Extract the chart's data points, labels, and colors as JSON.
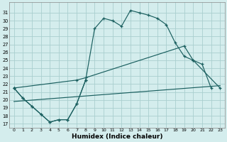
{
  "xlabel": "Humidex (Indice chaleur)",
  "background_color": "#d4eded",
  "grid_color": "#aacfcf",
  "line_color": "#1a5f5f",
  "xlim": [
    -0.5,
    23.5
  ],
  "ylim": [
    16.5,
    32.3
  ],
  "xticks": [
    0,
    1,
    2,
    3,
    4,
    5,
    6,
    7,
    8,
    9,
    10,
    11,
    12,
    13,
    14,
    15,
    16,
    17,
    18,
    19,
    20,
    21,
    22,
    23
  ],
  "yticks": [
    17,
    18,
    19,
    20,
    21,
    22,
    23,
    24,
    25,
    26,
    27,
    28,
    29,
    30,
    31
  ],
  "curve1_x": [
    0,
    1,
    2,
    3,
    4,
    5,
    6,
    7,
    8,
    9,
    10,
    11,
    12,
    13,
    14,
    15,
    16,
    17,
    18,
    19,
    20,
    21,
    22
  ],
  "curve1_y": [
    21.5,
    20.2,
    19.2,
    18.2,
    17.2,
    17.5,
    17.5,
    19.5,
    22.5,
    29.0,
    30.3,
    30.0,
    29.3,
    31.3,
    31.0,
    30.7,
    30.3,
    29.5,
    27.2,
    25.5,
    25.0,
    24.5,
    21.5
  ],
  "curve2_x": [
    0,
    1,
    2,
    3,
    4,
    5,
    6,
    7,
    8
  ],
  "curve2_y": [
    21.5,
    20.2,
    19.2,
    18.2,
    17.2,
    17.5,
    17.5,
    19.5,
    22.5
  ],
  "curve3_x": [
    0,
    7,
    8,
    19,
    20,
    23
  ],
  "curve3_y": [
    21.5,
    22.5,
    22.8,
    26.8,
    25.0,
    21.5
  ],
  "curve4_x": [
    0,
    23
  ],
  "curve4_y": [
    19.8,
    21.8
  ]
}
